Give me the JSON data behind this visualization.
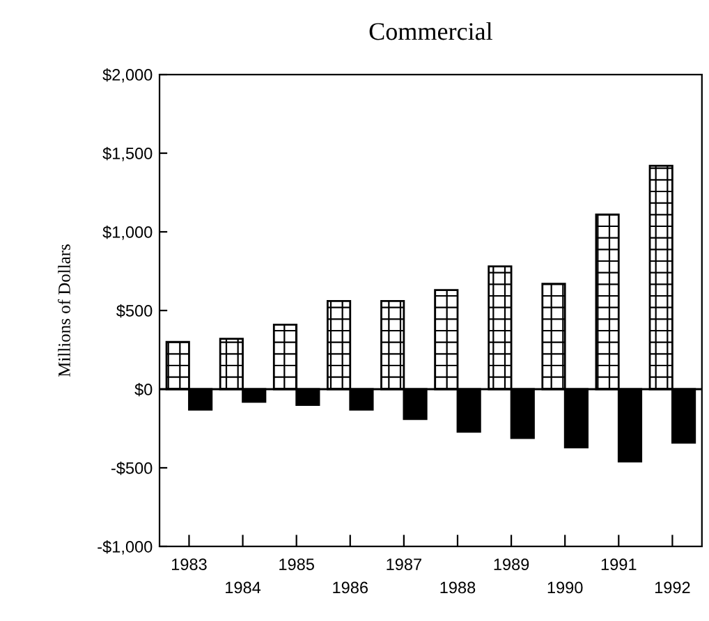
{
  "chart_data": {
    "type": "bar",
    "title": "Commercial",
    "ylabel": "Millions of Dollars",
    "categories": [
      "1983",
      "1984",
      "1985",
      "1986",
      "1987",
      "1988",
      "1989",
      "1990",
      "1991",
      "1992"
    ],
    "series": [
      {
        "color": "#000000",
        "values": [
          300,
          320,
          410,
          560,
          560,
          630,
          780,
          670,
          1110,
          1420
        ]
      },
      {
        "color": "#000000",
        "values": [
          -130,
          -80,
          -100,
          -130,
          -190,
          -270,
          -310,
          -370,
          -460,
          -340
        ]
      }
    ],
    "ylim": [
      -1000,
      2000
    ],
    "yticks": [
      {
        "value": -1000,
        "label": "-$1,000"
      },
      {
        "value": -500,
        "label": "-$500"
      },
      {
        "value": 0,
        "label": "$0"
      },
      {
        "value": 500,
        "label": "$500"
      },
      {
        "value": 1000,
        "label": "$1,000"
      },
      {
        "value": 1500,
        "label": "$1,500"
      },
      {
        "value": 2000,
        "label": "$2,000"
      }
    ],
    "legend": false
  }
}
